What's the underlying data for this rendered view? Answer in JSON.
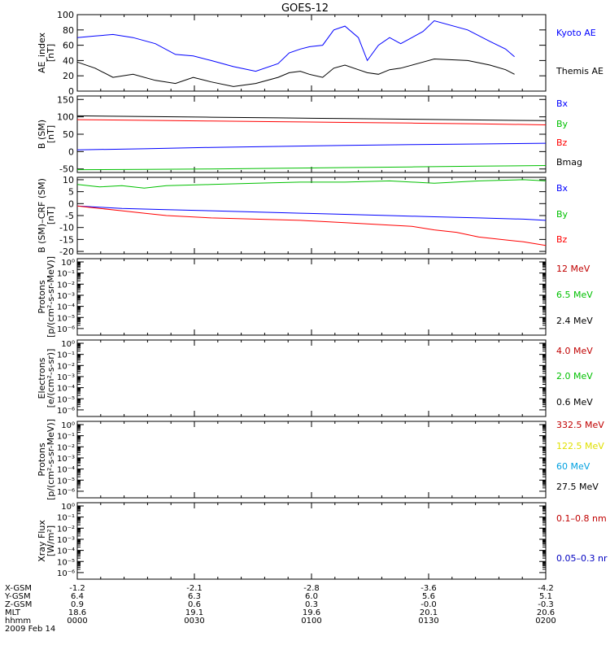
{
  "title": "GOES-12",
  "chart_data": [
    {
      "type": "line",
      "panel": "ae",
      "ylabel": [
        "AE_index",
        "[nT]"
      ],
      "ylim": [
        0,
        100
      ],
      "yticks": [
        {
          "v": 0,
          "t": "0"
        },
        {
          "v": 20,
          "t": "20"
        },
        {
          "v": 40,
          "t": "40"
        },
        {
          "v": 60,
          "t": "60"
        },
        {
          "v": 80,
          "t": "80"
        },
        {
          "v": 100,
          "t": "100"
        }
      ],
      "series": [
        {
          "name": "Kyoto AE",
          "color": "#0000ff",
          "x": [
            0,
            8,
            16,
            25,
            35,
            44,
            52,
            60,
            70,
            80,
            90,
            95,
            100,
            104,
            110,
            115,
            120,
            126,
            130,
            135,
            140,
            145,
            155,
            160,
            175,
            185,
            192,
            196
          ],
          "y": [
            70,
            72,
            74,
            70,
            62,
            48,
            46,
            40,
            32,
            26,
            36,
            50,
            55,
            58,
            60,
            80,
            85,
            70,
            40,
            60,
            70,
            62,
            78,
            92,
            80,
            65,
            55,
            45
          ]
        },
        {
          "name": "Themis AE",
          "color": "#000000",
          "x": [
            0,
            8,
            16,
            25,
            35,
            44,
            52,
            60,
            70,
            80,
            90,
            95,
            100,
            104,
            110,
            115,
            120,
            126,
            130,
            135,
            140,
            145,
            155,
            160,
            175,
            185,
            192,
            196
          ],
          "y": [
            38,
            30,
            18,
            22,
            14,
            10,
            18,
            12,
            6,
            10,
            18,
            24,
            26,
            22,
            18,
            30,
            34,
            28,
            24,
            22,
            28,
            30,
            38,
            42,
            40,
            34,
            28,
            22
          ]
        }
      ]
    },
    {
      "type": "line",
      "panel": "b",
      "ylabel": [
        "B (SM)",
        "[nT]"
      ],
      "ylim": [
        -60,
        160
      ],
      "yticks": [
        {
          "v": -50,
          "t": "-50"
        },
        {
          "v": 0,
          "t": "0"
        },
        {
          "v": 50,
          "t": "50"
        },
        {
          "v": 100,
          "t": "100"
        },
        {
          "v": 150,
          "t": "150"
        }
      ],
      "series": [
        {
          "name": "Bx",
          "color": "#0000ff",
          "x": [
            0,
            30,
            60,
            90,
            120,
            150,
            180,
            210
          ],
          "y": [
            5,
            8,
            12,
            15,
            18,
            20,
            22,
            24
          ]
        },
        {
          "name": "By",
          "color": "#00c000",
          "x": [
            0,
            30,
            60,
            90,
            120,
            150,
            180,
            210
          ],
          "y": [
            -52,
            -51,
            -50,
            -48,
            -46,
            -44,
            -42,
            -40
          ]
        },
        {
          "name": "Bz",
          "color": "#ff0000",
          "x": [
            0,
            30,
            60,
            90,
            120,
            150,
            180,
            210
          ],
          "y": [
            92,
            90,
            88,
            86,
            84,
            82,
            80,
            77
          ]
        },
        {
          "name": "Bmag",
          "color": "#000000",
          "x": [
            0,
            30,
            60,
            90,
            120,
            150,
            180,
            210
          ],
          "y": [
            103,
            101,
            99,
            97,
            95,
            93,
            91,
            89
          ]
        }
      ]
    },
    {
      "type": "line",
      "panel": "b-crf",
      "ylabel": [
        "B (SM)–CRF (SM)",
        "[nT]"
      ],
      "ylim": [
        -21,
        11
      ],
      "yticks": [
        {
          "v": -20,
          "t": "-20"
        },
        {
          "v": -15,
          "t": "-15"
        },
        {
          "v": -10,
          "t": "-10"
        },
        {
          "v": -5,
          "t": "-5"
        },
        {
          "v": 0,
          "t": "0"
        },
        {
          "v": 5,
          "t": "5"
        },
        {
          "v": 10,
          "t": "10"
        }
      ],
      "series": [
        {
          "name": "Bx",
          "color": "#0000ff",
          "x": [
            0,
            10,
            20,
            40,
            60,
            80,
            100,
            120,
            140,
            160,
            180,
            200,
            210
          ],
          "y": [
            -1,
            -1.5,
            -2,
            -2.5,
            -3,
            -3.5,
            -4,
            -4.5,
            -5,
            -5.5,
            -6,
            -6.5,
            -7
          ]
        },
        {
          "name": "By",
          "color": "#00c000",
          "x": [
            0,
            10,
            20,
            30,
            40,
            60,
            80,
            100,
            120,
            140,
            160,
            180,
            200,
            210
          ],
          "y": [
            8,
            7,
            7.5,
            6.5,
            7.5,
            8,
            8.5,
            9,
            9,
            9.5,
            8.5,
            9.5,
            10,
            9.5
          ]
        },
        {
          "name": "Bz",
          "color": "#ff0000",
          "x": [
            0,
            10,
            20,
            30,
            40,
            60,
            80,
            100,
            120,
            140,
            150,
            160,
            170,
            180,
            190,
            200,
            210
          ],
          "y": [
            -1,
            -2,
            -3,
            -4,
            -5,
            -6,
            -6.5,
            -7,
            -8,
            -9,
            -9.5,
            -11,
            -12,
            -14,
            -15,
            -16,
            -17.5
          ]
        }
      ]
    },
    {
      "type": "line",
      "panel": "protons1",
      "ylabel": [
        "Protons",
        "[p/(cm²-s-sr-MeV)]"
      ],
      "log": true,
      "legend": [
        {
          "name": "12 MeV",
          "color": "#c00000"
        },
        {
          "name": "6.5 MeV",
          "color": "#00c000"
        },
        {
          "name": "2.4 MeV",
          "color": "#000000"
        }
      ]
    },
    {
      "type": "line",
      "panel": "electrons",
      "ylabel": [
        "Electrons",
        "[e/(cm²-s-sr)]"
      ],
      "log": true,
      "legend": [
        {
          "name": "4.0 MeV",
          "color": "#c00000"
        },
        {
          "name": "2.0 MeV",
          "color": "#00c000"
        },
        {
          "name": "0.6 MeV",
          "color": "#000000"
        }
      ]
    },
    {
      "type": "line",
      "panel": "protons2",
      "ylabel": [
        "Protons",
        "[p/(cm²-s-sr-MeV)]"
      ],
      "log": true,
      "legend": [
        {
          "name": "332.5 MeV",
          "color": "#c00000"
        },
        {
          "name": "122.5 MeV",
          "color": "#e0e000"
        },
        {
          "name": "60 MeV",
          "color": "#00a0e0"
        },
        {
          "name": "27.5 MeV",
          "color": "#000000"
        }
      ]
    },
    {
      "type": "line",
      "panel": "xray",
      "ylabel": [
        "Xray Flux",
        "[W/m²]"
      ],
      "log": true,
      "legend": [
        {
          "name": "0.1–0.8 nm",
          "color": "#c00000"
        },
        {
          "name": "0.05–0.3 nr",
          "color": "#0000c0"
        }
      ]
    }
  ],
  "log_tick_labels": [
    "10⁻⁶",
    "10⁻⁵",
    "10⁻⁴",
    "10⁻³",
    "10⁻²",
    "10⁻¹",
    "10⁰"
  ],
  "ephemeris": {
    "row_labels": [
      "X-GSM",
      "Y-GSM",
      "Z-GSM",
      "MLT",
      "hhmm"
    ],
    "columns": [
      [
        "-1.2",
        "6.4",
        "0.9",
        "18.6",
        "0000"
      ],
      [
        "-2.1",
        "6.3",
        "0.6",
        "19.1",
        "0030"
      ],
      [
        "-2.8",
        "6.0",
        "0.3",
        "19.6",
        "0100"
      ],
      [
        "-3.6",
        "5.6",
        "-0.0",
        "20.1",
        "0130"
      ],
      [
        "-4.2",
        "5.1",
        "-0.3",
        "20.6",
        "0200"
      ]
    ],
    "date": "2009 Feb 14"
  }
}
